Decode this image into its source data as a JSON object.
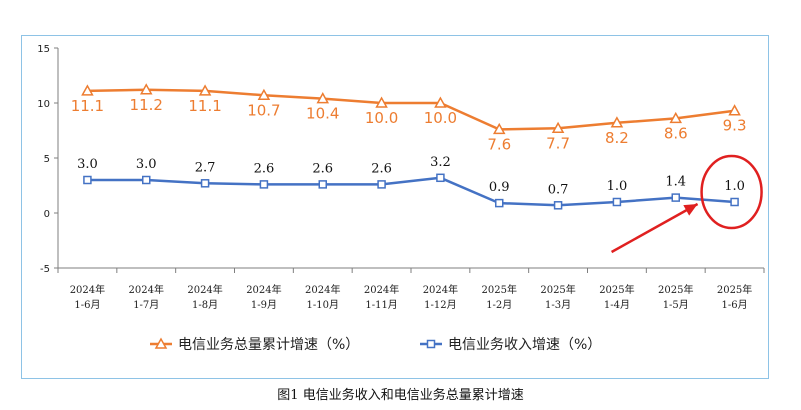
{
  "chart_data": {
    "type": "line",
    "caption": "图1  电信业务收入和电信业务总量累计增速",
    "categories": [
      [
        "2024年",
        "1-6月"
      ],
      [
        "2024年",
        "1-7月"
      ],
      [
        "2024年",
        "1-8月"
      ],
      [
        "2024年",
        "1-9月"
      ],
      [
        "2024年",
        "1-10月"
      ],
      [
        "2024年",
        "1-11月"
      ],
      [
        "2024年",
        "1-12月"
      ],
      [
        "2025年",
        "1-2月"
      ],
      [
        "2025年",
        "1-3月"
      ],
      [
        "2025年",
        "1-4月"
      ],
      [
        "2025年",
        "1-5月"
      ],
      [
        "2025年",
        "1-6月"
      ]
    ],
    "ylim": [
      -5,
      15
    ],
    "yticks": [
      "-5",
      "0",
      "5",
      "10",
      "15"
    ],
    "series": [
      {
        "name": "电信业务总量累计增速（%）",
        "color": "#ed7d31",
        "marker": "triangle",
        "values": [
          11.1,
          11.2,
          11.1,
          10.7,
          10.4,
          10.0,
          10.0,
          7.6,
          7.7,
          8.2,
          8.6,
          9.3
        ],
        "labels": [
          "11.1",
          "11.2",
          "11.1",
          "10.7",
          "10.4",
          "10.0",
          "10.0",
          "7.6",
          "7.7",
          "8.2",
          "8.6",
          "9.3"
        ]
      },
      {
        "name": "电信业务收入增速（%）",
        "color": "#4472c4",
        "marker": "square",
        "values": [
          3.0,
          3.0,
          2.7,
          2.6,
          2.6,
          2.6,
          3.2,
          0.9,
          0.7,
          1.0,
          1.4,
          1.0
        ],
        "labels": [
          "3.0",
          "3.0",
          "2.7",
          "2.6",
          "2.6",
          "2.6",
          "3.2",
          "0.9",
          "0.7",
          "1.0",
          "1.4",
          "1.0"
        ]
      }
    ],
    "annotation": {
      "type": "circle-and-arrow",
      "target_series": 1,
      "target_index": 11,
      "color": "#e02020"
    }
  }
}
